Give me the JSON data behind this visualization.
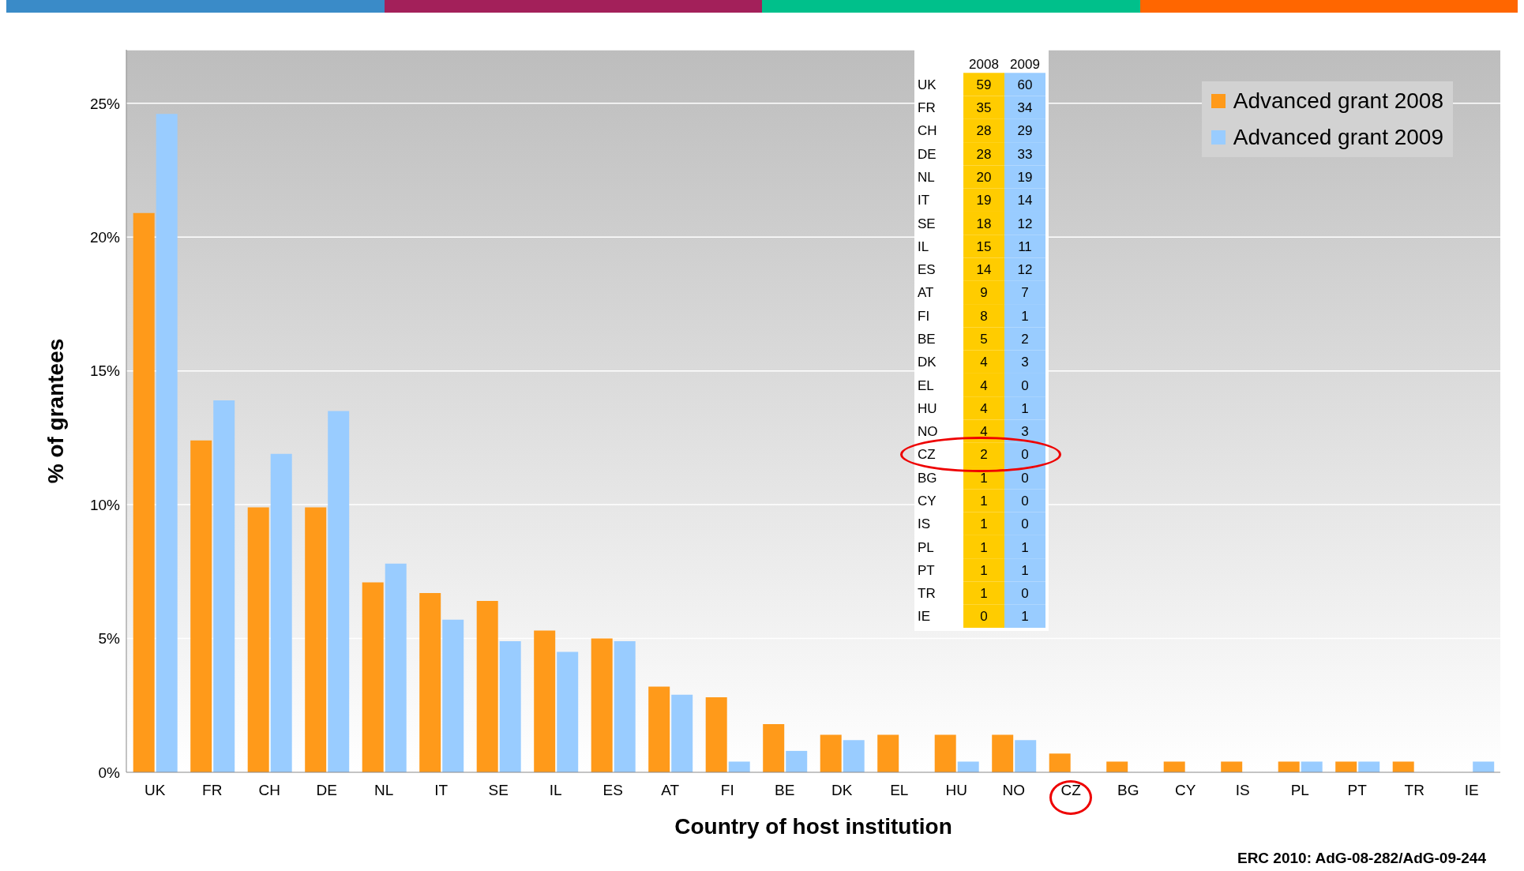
{
  "chart_data": [
    {
      "type": "bar",
      "xlabel": "Country of host institution",
      "ylabel": "% of grantees",
      "categories": [
        "UK",
        "FR",
        "CH",
        "DE",
        "NL",
        "IT",
        "SE",
        "IL",
        "ES",
        "AT",
        "FI",
        "BE",
        "DK",
        "EL",
        "HU",
        "NO",
        "CZ",
        "BG",
        "CY",
        "IS",
        "PL",
        "PT",
        "TR",
        "IE"
      ],
      "series": [
        {
          "name": "Advanced grant 2008",
          "color": "#ff9a1a",
          "values": [
            20.9,
            12.4,
            9.9,
            9.9,
            7.1,
            6.7,
            6.4,
            5.3,
            5.0,
            3.2,
            2.8,
            1.8,
            1.4,
            1.4,
            1.4,
            1.4,
            0.7,
            0.4,
            0.4,
            0.4,
            0.4,
            0.4,
            0.4,
            0
          ]
        },
        {
          "name": "Advanced grant 2009",
          "color": "#99ccff",
          "values": [
            24.6,
            13.9,
            11.9,
            13.5,
            7.8,
            5.7,
            4.9,
            4.5,
            4.9,
            2.9,
            0.4,
            0.8,
            1.2,
            0,
            0.4,
            1.2,
            0,
            0,
            0,
            0,
            0.4,
            0.4,
            0,
            0.4
          ]
        }
      ],
      "ylim": [
        0,
        27
      ],
      "yticks": [
        {
          "value": 0,
          "label": "0%"
        },
        {
          "value": 5,
          "label": "5%"
        },
        {
          "value": 10,
          "label": "10%"
        },
        {
          "value": 15,
          "label": "15%"
        },
        {
          "value": 20,
          "label": "20%"
        },
        {
          "value": 25,
          "label": "25%"
        }
      ],
      "grid": "y",
      "legend": "top right",
      "annotations": [
        "ERC 2010: AdG-08-282/AdG-09-244"
      ]
    },
    {
      "type": "heatmap",
      "data_labels": true,
      "categories": [
        "2008",
        "2009"
      ],
      "y_categories": [
        "UK",
        "FR",
        "CH",
        "DE",
        "NL",
        "IT",
        "SE",
        "IL",
        "ES",
        "AT",
        "FI",
        "BE",
        "DK",
        "EL",
        "HU",
        "NO",
        "CZ",
        "BG",
        "CY",
        "IS",
        "PL",
        "PT",
        "TR",
        "IE"
      ],
      "cells": [
        [
          59,
          60
        ],
        [
          35,
          34
        ],
        [
          28,
          29
        ],
        [
          28,
          33
        ],
        [
          20,
          19
        ],
        [
          19,
          14
        ],
        [
          18,
          12
        ],
        [
          15,
          11
        ],
        [
          14,
          12
        ],
        [
          9,
          7
        ],
        [
          8,
          1
        ],
        [
          5,
          2
        ],
        [
          4,
          3
        ],
        [
          4,
          0
        ],
        [
          4,
          1
        ],
        [
          4,
          3
        ],
        [
          2,
          0
        ],
        [
          1,
          0
        ],
        [
          1,
          0
        ],
        [
          1,
          0
        ],
        [
          1,
          1
        ],
        [
          1,
          1
        ],
        [
          1,
          0
        ],
        [
          0,
          1
        ]
      ]
    }
  ]
}
